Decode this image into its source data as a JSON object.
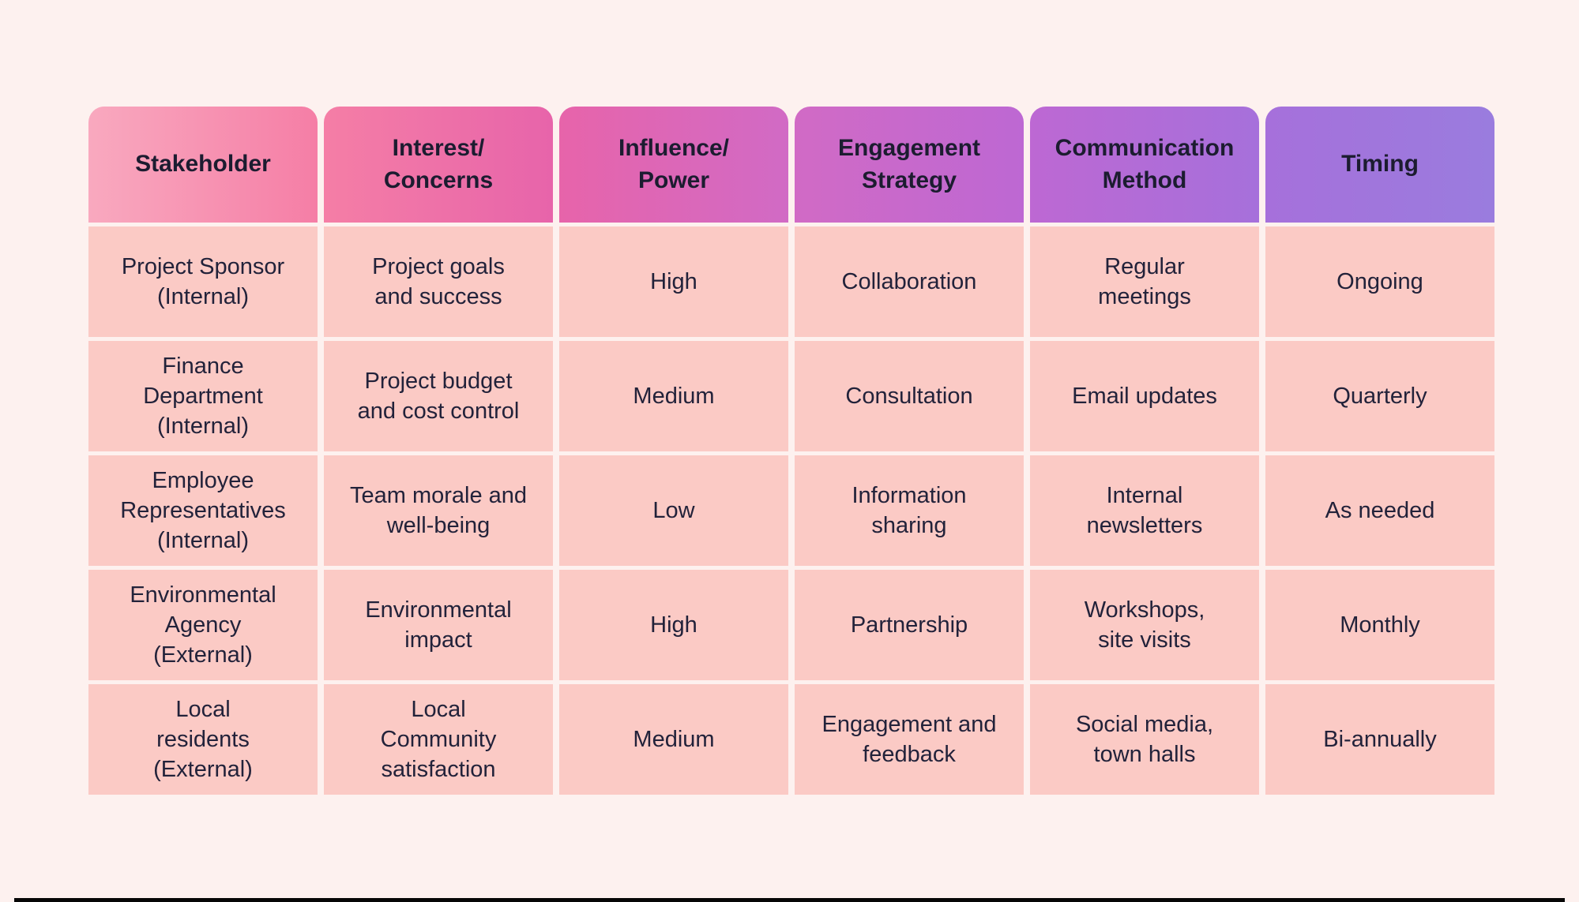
{
  "page": {
    "background_color": "#FDF1EF",
    "bottom_bar_color": "#060606"
  },
  "table": {
    "cell_background": "#FBCAC5",
    "body_text_color": "#22223A",
    "header_text_color": "#1C1C30",
    "columns": [
      {
        "key": "stakeholder",
        "label": "Stakeholder",
        "gradient_start": "#F9A9BF",
        "gradient_end": "#F57EA6"
      },
      {
        "key": "interest-concerns",
        "label": "Interest/\nConcerns",
        "gradient_start": "#F57EA6",
        "gradient_end": "#E764AA"
      },
      {
        "key": "influence-power",
        "label": "Influence/\nPower",
        "gradient_start": "#E764AA",
        "gradient_end": "#D16AC5"
      },
      {
        "key": "engagement-strategy",
        "label": "Engagement\nStrategy",
        "gradient_start": "#D16AC5",
        "gradient_end": "#BD68D3"
      },
      {
        "key": "communication-method",
        "label": "Communication\nMethod",
        "gradient_start": "#BD68D3",
        "gradient_end": "#A670DB"
      },
      {
        "key": "timing",
        "label": "Timing",
        "gradient_start": "#A670DB",
        "gradient_end": "#9A7CDE"
      }
    ],
    "rows": [
      {
        "cells": [
          "Project Sponsor\n(Internal)",
          "Project goals\nand success",
          "High",
          "Collaboration",
          "Regular\nmeetings",
          "Ongoing"
        ]
      },
      {
        "cells": [
          "Finance\nDepartment\n(Internal)",
          "Project budget\nand cost control",
          "Medium",
          "Consultation",
          "Email updates",
          "Quarterly"
        ]
      },
      {
        "cells": [
          "Employee\nRepresentatives\n(Internal)",
          "Team morale and\nwell-being",
          "Low",
          "Information\nsharing",
          "Internal\nnewsletters",
          "As needed"
        ]
      },
      {
        "cells": [
          "Environmental\nAgency\n(External)",
          "Environmental\nimpact",
          "High",
          "Partnership",
          "Workshops,\nsite visits",
          "Monthly"
        ]
      },
      {
        "cells": [
          "Local\nresidents\n(External)",
          "Local\nCommunity\nsatisfaction",
          "Medium",
          "Engagement and\nfeedback",
          "Social media,\ntown halls",
          "Bi-annually"
        ]
      }
    ]
  }
}
